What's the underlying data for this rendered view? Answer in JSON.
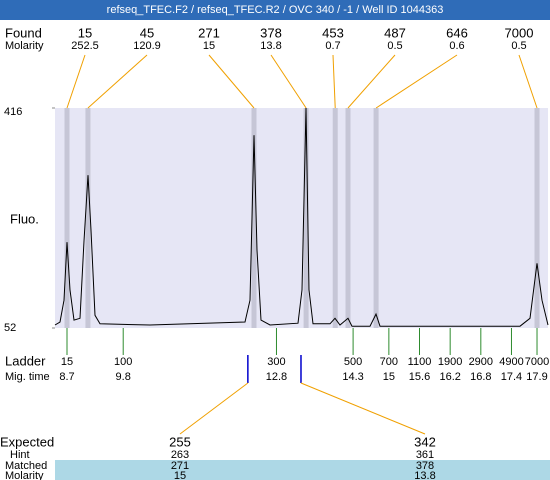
{
  "chart_data": {
    "type": "line",
    "title": "refseq_TFEC.F2 / refseq_TFEC.R2 / OVC 340 / -1 / Well ID 1044363",
    "found_label": "Found",
    "molarity_label": "Molarity",
    "y_label": "Fluo.",
    "ladder_label": "Ladder",
    "mig_time_label": "Mig. time",
    "expected_label": "Expected",
    "hint_label": "Hint",
    "matched_label": "Matched",
    "expected_molarity_label": "Molarity",
    "xlim": [
      8.465,
      18.115
    ],
    "ylim": [
      52,
      416
    ],
    "yticks": [
      52,
      416
    ],
    "plot_color": "#e6e6f5",
    "band_color": "#c6c6d6",
    "leader_color": "#f0a000",
    "ladder_color": "#2e8b2e",
    "expected_color": "#0000cc",
    "table_color": "#add8e6",
    "found": {
      "sizes": [
        15,
        45,
        271,
        378,
        453,
        487,
        646,
        7000
      ],
      "molarity": [
        252.5,
        120.9,
        15,
        13.8,
        0.7,
        0.5,
        0.6,
        0.5
      ],
      "x": [
        8.7,
        9.11,
        12.36,
        13.38,
        13.95,
        14.2,
        14.75,
        17.9
      ]
    },
    "ladder": {
      "sizes": [
        15,
        100,
        300,
        500,
        700,
        1100,
        1900,
        2900,
        4900,
        7000
      ],
      "x": [
        8.7,
        9.8,
        12.8,
        14.3,
        15,
        15.6,
        16.2,
        16.8,
        17.4,
        17.9
      ]
    },
    "expected": {
      "sizes": [
        255,
        342
      ],
      "hint": [
        263,
        361
      ],
      "matched": [
        271,
        378
      ],
      "molarity": [
        15,
        13.8
      ],
      "x": [
        12.24,
        13.28
      ]
    },
    "series": [
      {
        "color": "#000000",
        "x": [
          8.465,
          8.563,
          8.641,
          8.7,
          8.759,
          8.837,
          8.954,
          9.033,
          9.111,
          9.17,
          9.248,
          9.346,
          10.325,
          12.184,
          12.282,
          12.36,
          12.419,
          12.497,
          12.673,
          13.221,
          13.3,
          13.378,
          13.437,
          13.515,
          13.848,
          13.946,
          14.044,
          14.2,
          14.278,
          14.631,
          14.748,
          14.826,
          17.567,
          17.763,
          17.9,
          17.998,
          18.115
        ],
        "values": [
          57,
          62,
          98,
          194,
          115,
          65,
          68,
          196,
          305,
          214,
          73,
          59,
          57,
          62,
          98,
          371,
          181,
          65,
          57,
          60,
          115,
          416,
          115,
          59,
          59,
          68,
          57,
          68,
          55,
          55,
          75,
          55,
          55,
          68,
          159,
          98,
          57
        ]
      }
    ]
  }
}
